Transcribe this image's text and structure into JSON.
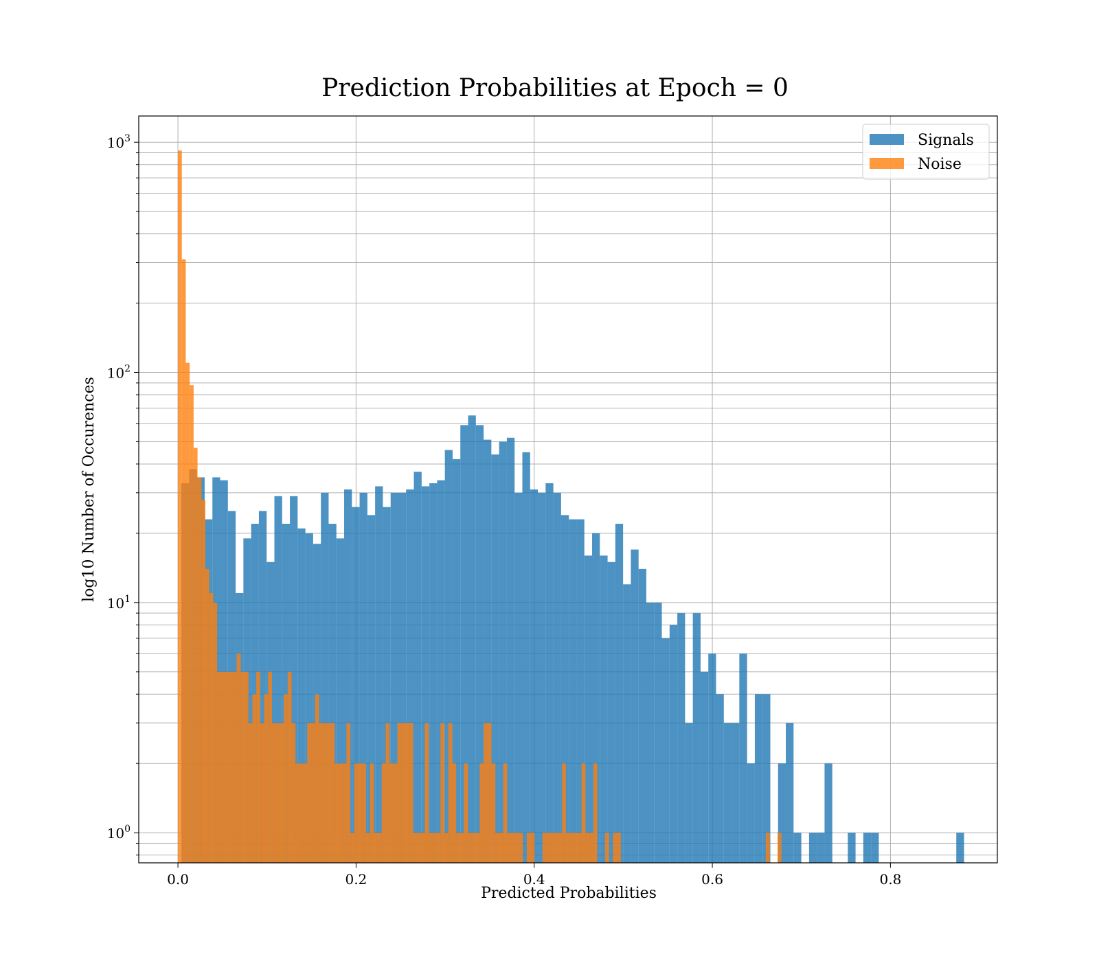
{
  "chart_data": {
    "type": "histogram",
    "title": "Prediction Probabilities at Epoch = 0",
    "xlabel": "Predicted Probabilities",
    "ylabel": "log10 Number of Occurences",
    "xlim": [
      -0.044,
      0.92
    ],
    "ylim": [
      0.74,
      1300
    ],
    "yscale": "log",
    "grid": true,
    "legend_position": "top-right",
    "x_ticks": [
      {
        "value": 0.0,
        "label": "0.0"
      },
      {
        "value": 0.2,
        "label": "0.2"
      },
      {
        "value": 0.4,
        "label": "0.4"
      },
      {
        "value": 0.6,
        "label": "0.6"
      },
      {
        "value": 0.8,
        "label": "0.8"
      }
    ],
    "y_ticks": [
      {
        "value": 1,
        "base": "10",
        "exp": "0"
      },
      {
        "value": 10,
        "base": "10",
        "exp": "1"
      },
      {
        "value": 100,
        "base": "10",
        "exp": "2"
      },
      {
        "value": 1000,
        "base": "10",
        "exp": "3"
      }
    ],
    "series": [
      {
        "name": "Signals",
        "color": "#1f77b4",
        "bin_start": 0.0039,
        "bin_width": 0.0087,
        "counts": [
          33,
          38,
          35,
          23,
          35,
          34,
          25,
          11,
          19,
          22,
          25,
          15,
          29,
          22,
          29,
          21,
          20,
          18,
          30,
          22,
          19,
          31,
          26,
          30,
          24,
          32,
          26,
          30,
          30,
          31,
          37,
          32,
          33,
          34,
          46,
          42,
          59,
          65,
          59,
          51,
          44,
          50,
          52,
          30,
          45,
          31,
          30,
          33,
          30,
          24,
          23,
          23,
          16,
          20,
          16,
          15,
          22,
          12,
          17,
          14,
          10,
          10,
          7,
          8,
          9,
          3,
          9,
          5,
          6,
          4,
          3,
          3,
          6,
          2,
          4,
          4,
          0,
          2,
          3,
          1,
          0,
          1,
          1,
          2,
          0,
          0,
          1,
          0,
          1,
          1,
          0,
          0,
          0,
          0,
          0,
          0,
          0,
          0,
          0,
          0,
          1
        ]
      },
      {
        "name": "Noise",
        "color": "#ff7f0e",
        "bin_start": 0.0,
        "bin_width": 0.0044,
        "counts": [
          920,
          310,
          110,
          88,
          47,
          35,
          28,
          14,
          11,
          10,
          5,
          5,
          5,
          5,
          5,
          6,
          5,
          5,
          3,
          4,
          5,
          3,
          4,
          5,
          3,
          3,
          3,
          4,
          5,
          3,
          2,
          2,
          2,
          3,
          3,
          4,
          3,
          3,
          3,
          3,
          2,
          2,
          2,
          3,
          1,
          2,
          2,
          2,
          1,
          2,
          1,
          1,
          2,
          3,
          2,
          2,
          3,
          3,
          3,
          3,
          1,
          1,
          1,
          3,
          1,
          1,
          1,
          3,
          1,
          3,
          2,
          1,
          1,
          2,
          1,
          1,
          1,
          2,
          3,
          3,
          2,
          1,
          1,
          2,
          1,
          1,
          1,
          1,
          0,
          1,
          1,
          0,
          0,
          1,
          1,
          1,
          1,
          1,
          2,
          1,
          1,
          1,
          1,
          2,
          1,
          1,
          2,
          0,
          0,
          1,
          0,
          1,
          1,
          0,
          0,
          0,
          0,
          0,
          0,
          0,
          0,
          0,
          0,
          0,
          0,
          0,
          0,
          0,
          0,
          0,
          0,
          0,
          0,
          0,
          0,
          0,
          0,
          0,
          0,
          0,
          0,
          0,
          0,
          0,
          0,
          0,
          0,
          0,
          0,
          0,
          1,
          0,
          0,
          1,
          0,
          0,
          0,
          0,
          0,
          0,
          0,
          0,
          0,
          0,
          0,
          0,
          0,
          0,
          0,
          0,
          0,
          0,
          0,
          0,
          0,
          0,
          0,
          0,
          0,
          0,
          0,
          0,
          0,
          0,
          0,
          0,
          0,
          0,
          0,
          0,
          0,
          0,
          0,
          0,
          0,
          0,
          0,
          0,
          0,
          0
        ]
      }
    ]
  }
}
